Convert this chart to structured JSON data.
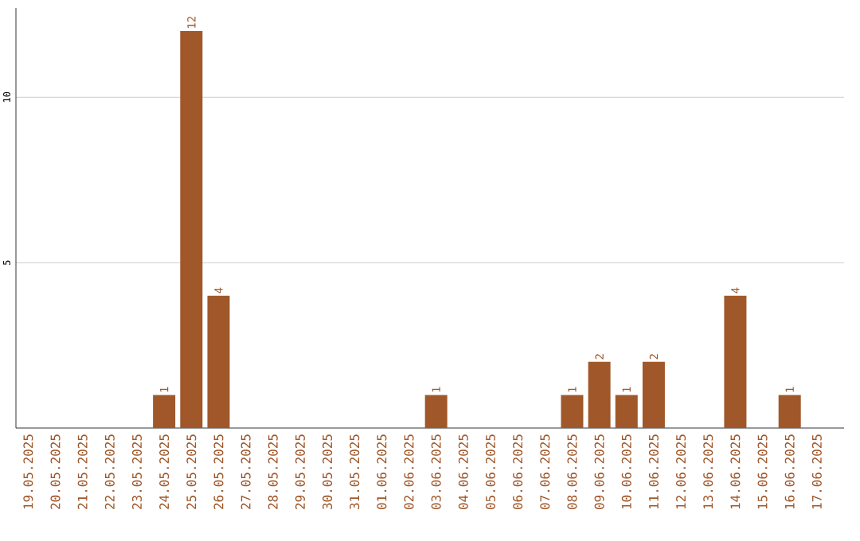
{
  "chart_data": {
    "type": "bar",
    "categories": [
      "19.05.2025",
      "20.05.2025",
      "21.05.2025",
      "22.05.2025",
      "23.05.2025",
      "24.05.2025",
      "25.05.2025",
      "26.05.2025",
      "27.05.2025",
      "28.05.2025",
      "29.05.2025",
      "30.05.2025",
      "31.05.2025",
      "01.06.2025",
      "02.06.2025",
      "03.06.2025",
      "04.06.2025",
      "05.06.2025",
      "06.06.2025",
      "07.06.2025",
      "08.06.2025",
      "09.06.2025",
      "10.06.2025",
      "11.06.2025",
      "12.06.2025",
      "13.06.2025",
      "14.06.2025",
      "15.06.2025",
      "16.06.2025",
      "17.06.2025"
    ],
    "values": [
      0,
      0,
      0,
      0,
      0,
      1,
      12,
      4,
      0,
      0,
      0,
      0,
      0,
      0,
      0,
      1,
      0,
      0,
      0,
      0,
      1,
      2,
      1,
      2,
      0,
      0,
      4,
      0,
      1,
      0
    ],
    "value_labels": [
      null,
      null,
      null,
      null,
      null,
      "1",
      "12",
      "4",
      null,
      null,
      null,
      null,
      null,
      null,
      null,
      "1",
      null,
      null,
      null,
      null,
      "1",
      "2",
      "1",
      "2",
      null,
      null,
      "4",
      null,
      "1",
      null
    ],
    "color": "#a0582a",
    "ylim": [
      0,
      12.7
    ],
    "yticks": [
      5,
      10
    ],
    "grid": "y"
  }
}
